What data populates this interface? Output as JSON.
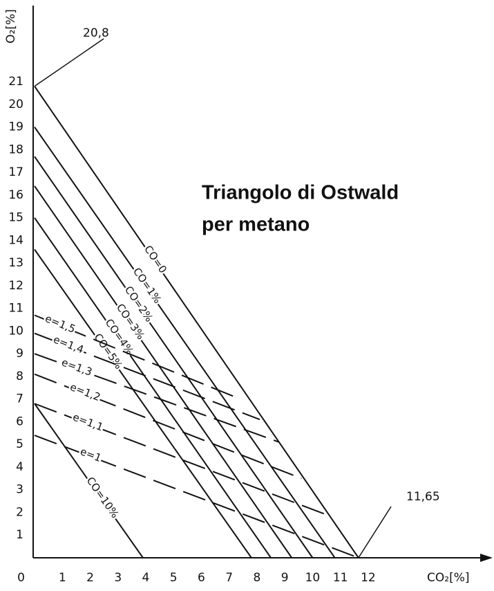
{
  "chart_data": {
    "type": "line",
    "title_lines": [
      "Triangolo di Ostwald",
      "per metano"
    ],
    "x_label": "CO₂[%]",
    "y_label": "O₂[%]",
    "xlim": [
      0,
      16.4
    ],
    "ylim": [
      0,
      24.3
    ],
    "xticks": [
      0,
      1,
      2,
      3,
      4,
      5,
      6,
      7,
      8,
      9,
      10,
      11,
      12
    ],
    "yticks": [
      1,
      2,
      3,
      4,
      5,
      6,
      7,
      8,
      9,
      10,
      11,
      12,
      13,
      14,
      15,
      16,
      17,
      18,
      19,
      20,
      21
    ],
    "grid": false,
    "series": [
      {
        "name": "CO=0",
        "color": "#111",
        "dashed": false,
        "x": [
          0,
          11.65
        ],
        "values": [
          20.8,
          0
        ]
      },
      {
        "name": "CO=1%",
        "color": "#111",
        "dashed": false,
        "x": [
          0,
          10.8
        ],
        "values": [
          19.0,
          0
        ]
      },
      {
        "name": "CO=2%",
        "color": "#111",
        "dashed": false,
        "x": [
          0,
          10.0
        ],
        "values": [
          17.7,
          0
        ]
      },
      {
        "name": "CO=3%",
        "color": "#111",
        "dashed": false,
        "x": [
          0,
          9.25
        ],
        "values": [
          16.4,
          0
        ]
      },
      {
        "name": "CO=4%",
        "color": "#111",
        "dashed": false,
        "x": [
          0,
          8.5
        ],
        "values": [
          15.0,
          0
        ]
      },
      {
        "name": "CO=5%",
        "color": "#111",
        "dashed": false,
        "x": [
          0,
          7.8
        ],
        "values": [
          13.6,
          0
        ]
      },
      {
        "name": "CO=10%",
        "color": "#111",
        "dashed": false,
        "x": [
          0,
          3.9
        ],
        "values": [
          6.8,
          0
        ]
      },
      {
        "name": "e=1,5",
        "color": "#111",
        "dashed": true,
        "x": [
          0,
          7.4
        ],
        "values": [
          10.7,
          7.0
        ]
      },
      {
        "name": "e=1,4",
        "color": "#111",
        "dashed": true,
        "x": [
          0,
          8.1
        ],
        "values": [
          9.9,
          6.1
        ]
      },
      {
        "name": "e=1,3",
        "color": "#111",
        "dashed": true,
        "x": [
          0,
          8.8
        ],
        "values": [
          9.0,
          5.1
        ]
      },
      {
        "name": "e=1,2",
        "color": "#111",
        "dashed": true,
        "x": [
          0,
          9.6
        ],
        "values": [
          8.1,
          3.5
        ]
      },
      {
        "name": "e=1,1",
        "color": "#111",
        "dashed": true,
        "x": [
          0,
          10.5
        ],
        "values": [
          6.8,
          1.9
        ]
      },
      {
        "name": "e=1",
        "color": "#111",
        "dashed": true,
        "x": [
          0,
          11.65
        ],
        "values": [
          5.4,
          0
        ]
      }
    ],
    "annotations": [
      {
        "label": "20,8",
        "x": 0,
        "y": 20.8
      },
      {
        "label": "11,65",
        "x": 11.65,
        "y": 0
      }
    ]
  }
}
